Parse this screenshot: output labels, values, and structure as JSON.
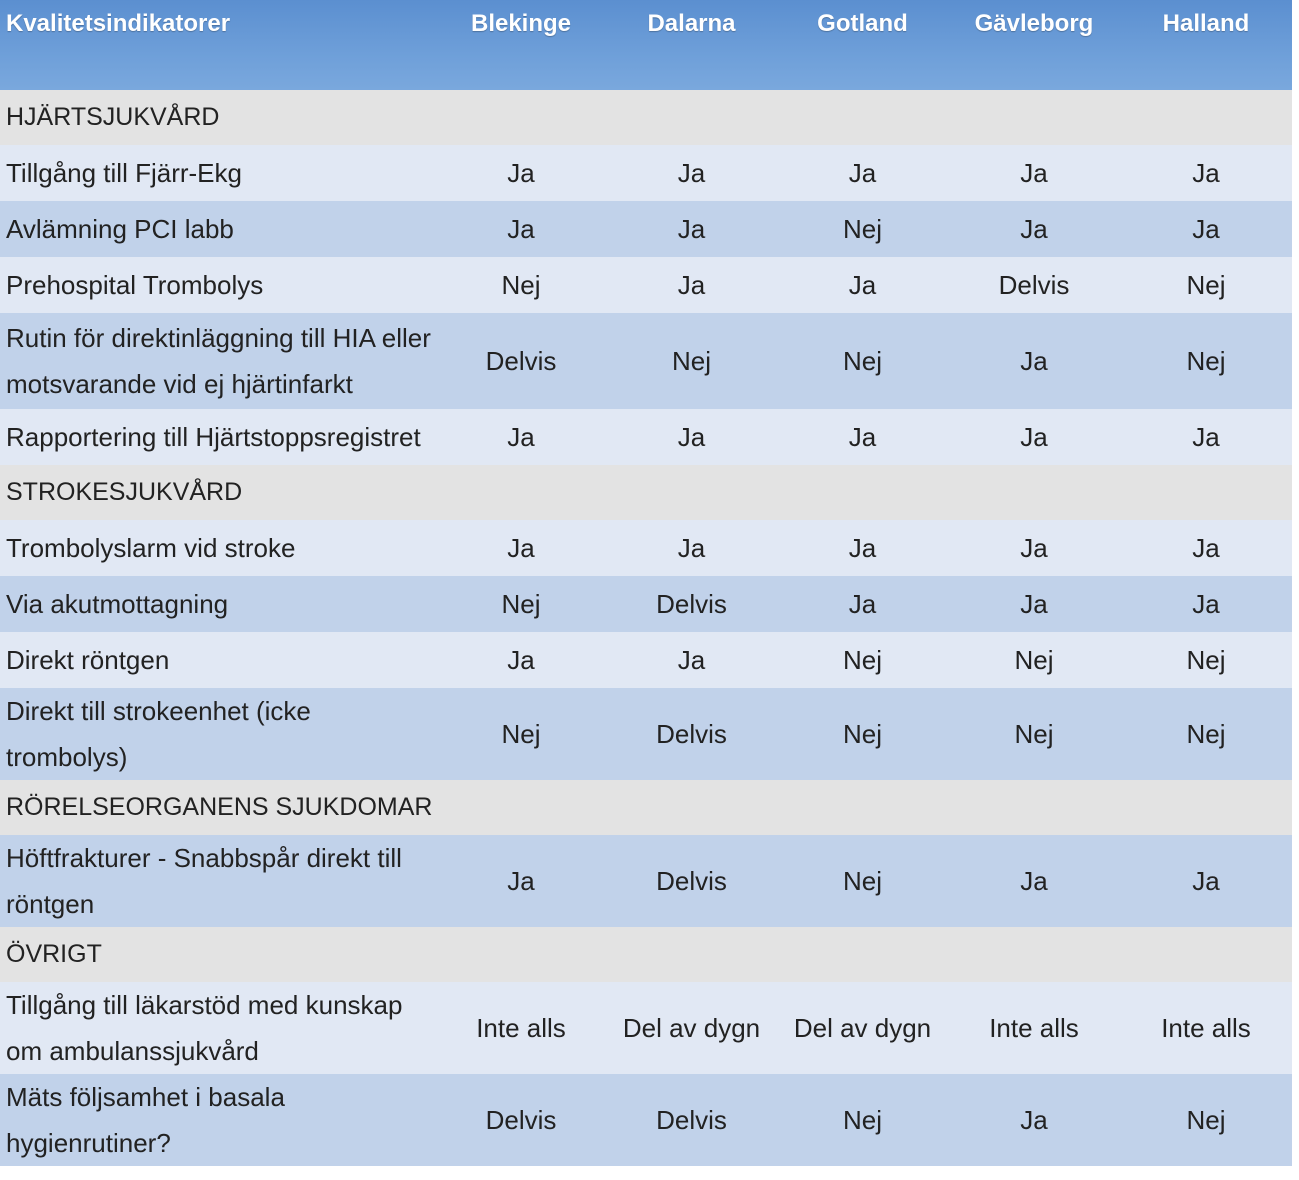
{
  "header": {
    "title": "Kvalitetsindikatorer",
    "regions": [
      "Blekinge",
      "Dalarna",
      "Gotland",
      "Gävleborg",
      "Halland"
    ]
  },
  "colors": {
    "header_blue": "#6e9fd9",
    "row_light": "#e1e8f4",
    "row_dark": "#c1d2ea",
    "section_gray": "#e3e3e3"
  },
  "sections": [
    {
      "title": "HJÄRTSJUKVÅRD",
      "rows": [
        {
          "label": "Tillgång till Fjärr-Ekg",
          "values": [
            "Ja",
            "Ja",
            "Ja",
            "Ja",
            "Ja"
          ]
        },
        {
          "label": "Avlämning PCI labb",
          "values": [
            "Ja",
            "Ja",
            "Nej",
            "Ja",
            "Ja"
          ]
        },
        {
          "label": "Prehospital Trombolys",
          "values": [
            "Nej",
            "Ja",
            "Ja",
            "Delvis",
            "Nej"
          ]
        },
        {
          "label": "Rutin för direktinläggning till HIA eller motsvarande vid ej hjärtinfarkt",
          "values": [
            "Delvis",
            "Nej",
            "Nej",
            "Ja",
            "Nej"
          ]
        },
        {
          "label": "Rapportering till Hjärtstoppsregistret",
          "values": [
            "Ja",
            "Ja",
            "Ja",
            "Ja",
            "Ja"
          ]
        }
      ]
    },
    {
      "title": "STROKESJUKVÅRD",
      "rows": [
        {
          "label": "Trombolyslarm vid stroke",
          "values": [
            "Ja",
            "Ja",
            "Ja",
            "Ja",
            "Ja"
          ]
        },
        {
          "label": "Via akutmottagning",
          "values": [
            "Nej",
            "Delvis",
            "Ja",
            "Ja",
            "Ja"
          ]
        },
        {
          "label": "Direkt röntgen",
          "values": [
            "Ja",
            "Ja",
            "Nej",
            "Nej",
            "Nej"
          ]
        },
        {
          "label": "Direkt till strokeenhet (icke trombolys)",
          "values": [
            "Nej",
            "Delvis",
            "Nej",
            "Nej",
            "Nej"
          ]
        }
      ]
    },
    {
      "title": "RÖRELSEORGANENS SJUKDOMAR",
      "rows": [
        {
          "label": "Höftfrakturer - Snabbspår direkt till röntgen",
          "values": [
            "Ja",
            "Delvis",
            "Nej",
            "Ja",
            "Ja"
          ]
        }
      ]
    },
    {
      "title": "ÖVRIGT",
      "rows": [
        {
          "label": "Tillgång till läkarstöd med kunskap om ambulanssjukvård",
          "values": [
            "Inte alls",
            "Del av dygn",
            "Del av dygn",
            "Inte alls",
            "Inte alls"
          ]
        },
        {
          "label": "Mäts följsamhet i basala hygienrutiner?",
          "values": [
            "Delvis",
            "Delvis",
            "Nej",
            "Ja",
            "Nej"
          ]
        }
      ]
    }
  ]
}
